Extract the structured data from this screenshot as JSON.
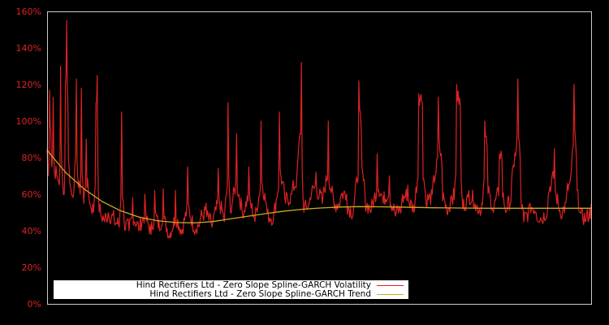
{
  "chart_data": {
    "type": "line",
    "title": "",
    "xlabel": "",
    "ylabel": "",
    "ylim": [
      0,
      160
    ],
    "yticks": [
      "0%",
      "20%",
      "40%",
      "60%",
      "80%",
      "100%",
      "120%",
      "140%",
      "160%"
    ],
    "grid": false,
    "legend_position": "lower left",
    "series": [
      {
        "name": "Hind Rectifiers Ltd - Zero Slope Spline-GARCH Volatility",
        "color": "#dd2222",
        "description": "Daily volatility series, noisy with spikes; baseline ~70-80% early, ~40% mid, ~45-50% late",
        "approx_points": [
          [
            0,
            85
          ],
          [
            2,
            70
          ],
          [
            4,
            117
          ],
          [
            6,
            95
          ],
          [
            8,
            75
          ],
          [
            10,
            113
          ],
          [
            12,
            72
          ],
          [
            16,
            70
          ],
          [
            20,
            65
          ],
          [
            22,
            130
          ],
          [
            24,
            75
          ],
          [
            28,
            60
          ],
          [
            30,
            120
          ],
          [
            32,
            155
          ],
          [
            34,
            110
          ],
          [
            36,
            75
          ],
          [
            40,
            60
          ],
          [
            44,
            62
          ],
          [
            48,
            123
          ],
          [
            50,
            70
          ],
          [
            54,
            60
          ],
          [
            56,
            118
          ],
          [
            60,
            55
          ],
          [
            64,
            90
          ],
          [
            70,
            55
          ],
          [
            76,
            50
          ],
          [
            80,
            110
          ],
          [
            82,
            125
          ],
          [
            84,
            60
          ],
          [
            88,
            48
          ],
          [
            94,
            45
          ],
          [
            100,
            50
          ],
          [
            110,
            45
          ],
          [
            118,
            42
          ],
          [
            122,
            105
          ],
          [
            126,
            45
          ],
          [
            134,
            40
          ],
          [
            140,
            58
          ],
          [
            150,
            40
          ],
          [
            160,
            60
          ],
          [
            170,
            38
          ],
          [
            176,
            62
          ],
          [
            184,
            40
          ],
          [
            190,
            63
          ],
          [
            200,
            36
          ],
          [
            210,
            62
          ],
          [
            220,
            38
          ],
          [
            230,
            75
          ],
          [
            240,
            40
          ],
          [
            250,
            45
          ],
          [
            260,
            55
          ],
          [
            270,
            42
          ],
          [
            280,
            74
          ],
          [
            290,
            45
          ],
          [
            296,
            110
          ],
          [
            300,
            50
          ],
          [
            310,
            93
          ],
          [
            320,
            48
          ],
          [
            330,
            75
          ],
          [
            340,
            45
          ],
          [
            350,
            100
          ],
          [
            360,
            50
          ],
          [
            370,
            45
          ],
          [
            380,
            105
          ],
          [
            390,
            55
          ],
          [
            400,
            60
          ],
          [
            410,
            78
          ],
          [
            416,
            132
          ],
          [
            420,
            50
          ],
          [
            430,
            58
          ],
          [
            440,
            72
          ],
          [
            450,
            55
          ],
          [
            460,
            100
          ],
          [
            470,
            52
          ],
          [
            480,
            58
          ],
          [
            490,
            60
          ],
          [
            500,
            48
          ],
          [
            510,
            122
          ],
          [
            514,
            95
          ],
          [
            520,
            60
          ],
          [
            530,
            50
          ],
          [
            540,
            82
          ],
          [
            550,
            55
          ],
          [
            560,
            70
          ],
          [
            570,
            48
          ],
          [
            580,
            55
          ],
          [
            590,
            65
          ],
          [
            600,
            50
          ],
          [
            608,
            115
          ],
          [
            614,
            110
          ],
          [
            620,
            55
          ],
          [
            630,
            60
          ],
          [
            640,
            113
          ],
          [
            646,
            75
          ],
          [
            654,
            50
          ],
          [
            660,
            58
          ],
          [
            666,
            57
          ],
          [
            670,
            120
          ],
          [
            676,
            108
          ],
          [
            680,
            52
          ],
          [
            690,
            62
          ],
          [
            700,
            55
          ],
          [
            710,
            50
          ],
          [
            716,
            100
          ],
          [
            720,
            84
          ],
          [
            730,
            50
          ],
          [
            740,
            82
          ],
          [
            744,
            80
          ],
          [
            750,
            50
          ],
          [
            760,
            68
          ],
          [
            764,
            75
          ],
          [
            770,
            123
          ],
          [
            774,
            78
          ],
          [
            780,
            45
          ],
          [
            790,
            55
          ],
          [
            800,
            50
          ],
          [
            810,
            45
          ],
          [
            820,
            60
          ],
          [
            830,
            85
          ],
          [
            840,
            48
          ],
          [
            850,
            60
          ],
          [
            858,
            75
          ],
          [
            862,
            120
          ],
          [
            866,
            80
          ],
          [
            872,
            50
          ],
          [
            880,
            45
          ],
          [
            890,
            55
          ]
        ]
      },
      {
        "name": "Hind Rectifiers Ltd - Zero Slope Spline-GARCH Trend",
        "color": "#ccaa22",
        "description": "Smooth spline trend",
        "approx_points": [
          [
            0,
            84
          ],
          [
            30,
            72
          ],
          [
            60,
            63
          ],
          [
            90,
            56
          ],
          [
            120,
            51
          ],
          [
            150,
            47.5
          ],
          [
            180,
            45.5
          ],
          [
            210,
            44.5
          ],
          [
            240,
            44.3
          ],
          [
            270,
            45
          ],
          [
            300,
            46.5
          ],
          [
            330,
            48
          ],
          [
            360,
            49.5
          ],
          [
            390,
            50.8
          ],
          [
            420,
            51.8
          ],
          [
            450,
            52.5
          ],
          [
            480,
            53
          ],
          [
            510,
            53.2
          ],
          [
            540,
            53.1
          ],
          [
            570,
            53
          ],
          [
            600,
            52.8
          ],
          [
            630,
            52.6
          ],
          [
            660,
            52.5
          ],
          [
            690,
            52.4
          ],
          [
            720,
            52.3
          ],
          [
            750,
            52.3
          ],
          [
            780,
            52.3
          ],
          [
            810,
            52.3
          ],
          [
            840,
            52.3
          ],
          [
            870,
            52.3
          ],
          [
            890,
            52.3
          ]
        ]
      }
    ]
  },
  "legend": {
    "items": [
      {
        "label": "Hind Rectifiers Ltd - Zero Slope Spline-GARCH Volatility",
        "color": "#dd2222"
      },
      {
        "label": "Hind Rectifiers Ltd - Zero Slope Spline-GARCH Trend",
        "color": "#ccaa22"
      }
    ]
  },
  "colors": {
    "background": "#000000",
    "axis_border": "#cccccc",
    "tick_label": "#dd2222"
  }
}
